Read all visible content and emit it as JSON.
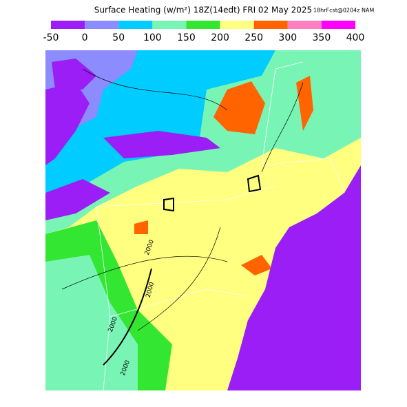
{
  "header": {
    "title": "Surface Heating (w/m²) 18Z(14edt) FRI 02 May 2025",
    "subtitle": "18hrFcst@0204z NAM"
  },
  "legend": {
    "ticks": [
      -50,
      0,
      50,
      100,
      150,
      200,
      250,
      300,
      350,
      400
    ],
    "colors": [
      "#9a1ef5",
      "#8c8cff",
      "#00ccff",
      "#78f5b4",
      "#32e632",
      "#ffff80",
      "#ff6400",
      "#ff80c0",
      "#ff00ff"
    ]
  },
  "map": {
    "contour_labels": [
      "2000",
      "2000",
      "2000",
      "2000"
    ]
  }
}
